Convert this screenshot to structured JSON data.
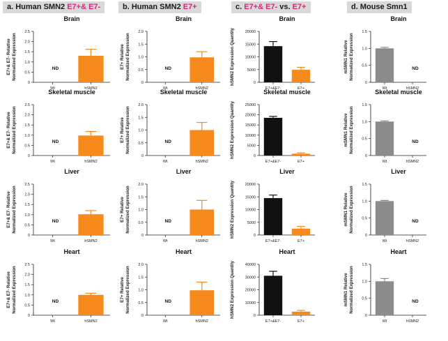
{
  "headers": [
    {
      "prefix": "a. Human SMN2 ",
      "highlight": "E7+& E7-"
    },
    {
      "prefix": "b. Human SMN2 ",
      "highlight": "E7+"
    },
    {
      "prefix": "c. ",
      "highlight": "E7+& E7-",
      "suffix": " vs. ",
      "highlight2": "E7+"
    },
    {
      "prefix": "d. Mouse Smn1",
      "highlight": ""
    }
  ],
  "colors": {
    "orange": "#f78a1d",
    "black": "#111111",
    "gray": "#8c8c8c",
    "axis": "#222222"
  },
  "chart_data": [
    {
      "id": "a-brain",
      "type": "bar",
      "title": "Brain",
      "ylabel": [
        "E7+& E7- Relative",
        "Normalized Expression"
      ],
      "ylim": [
        0,
        2.5
      ],
      "yticks": [
        "0",
        "0.5",
        "1.0",
        "1.5",
        "2.0",
        "2.5"
      ],
      "categories": [
        "Wt",
        "hSMN2"
      ],
      "values": [
        null,
        1.3
      ],
      "errors": [
        null,
        0.32
      ],
      "color": "orange",
      "nd": [
        0
      ]
    },
    {
      "id": "b-brain",
      "type": "bar",
      "title": "Brain",
      "ylabel": [
        "E7+ Relative",
        "Normalized Expression"
      ],
      "ylim": [
        0,
        2.0
      ],
      "yticks": [
        "0",
        "0.5",
        "1.0",
        "1.5",
        "2.0"
      ],
      "categories": [
        "Wt",
        "hSMN2"
      ],
      "values": [
        null,
        0.98
      ],
      "errors": [
        null,
        0.22
      ],
      "color": "orange",
      "nd": [
        0
      ]
    },
    {
      "id": "c-brain",
      "type": "bar",
      "title": "Brain",
      "ylabel": [
        "hSMN2 Expression Quantity"
      ],
      "ylim": [
        0,
        20000
      ],
      "yticks": [
        "0",
        "5000",
        "10000",
        "15000",
        "20000"
      ],
      "categories": [
        "E7+&E7-",
        "E7+"
      ],
      "values": [
        14200,
        4900
      ],
      "errors": [
        1800,
        1000
      ],
      "colors": [
        "black",
        "orange"
      ],
      "nd": []
    },
    {
      "id": "d-brain",
      "type": "bar",
      "title": "Brain",
      "ylabel": [
        "mSMN1 Relative",
        "Normalized Expression"
      ],
      "ylim": [
        0,
        1.5
      ],
      "yticks": [
        "0",
        "0.5",
        "1.0",
        "1.5"
      ],
      "categories": [
        "Wt",
        "hSMN2"
      ],
      "values": [
        1.0,
        null
      ],
      "errors": [
        0.03,
        null
      ],
      "color": "gray",
      "nd": [
        1
      ]
    },
    {
      "id": "a-muscle",
      "type": "bar",
      "title": "Skeletal muscle",
      "ylabel": [
        "E7+& E7- Relative",
        "Normalized Expression"
      ],
      "ylim": [
        0,
        2.5
      ],
      "yticks": [
        "0",
        "0.5",
        "1.0",
        "1.5",
        "2.0",
        "2.5"
      ],
      "categories": [
        "Wt",
        "hSMN2"
      ],
      "values": [
        null,
        0.98
      ],
      "errors": [
        null,
        0.2
      ],
      "color": "orange",
      "nd": [
        0
      ]
    },
    {
      "id": "b-muscle",
      "type": "bar",
      "title": "Skeletal muscle",
      "ylabel": [
        "E7+ Relative",
        "Normalized Expression"
      ],
      "ylim": [
        0,
        2.0
      ],
      "yticks": [
        "0",
        "0.5",
        "1.0",
        "1.5",
        "2.0"
      ],
      "categories": [
        "Wt",
        "hSMN2"
      ],
      "values": [
        null,
        1.0
      ],
      "errors": [
        null,
        0.3
      ],
      "color": "orange",
      "nd": [
        0
      ]
    },
    {
      "id": "c-muscle",
      "type": "bar",
      "title": "Skeletal muscle",
      "ylabel": [
        "hSMN2 Expression Quantity"
      ],
      "ylim": [
        0,
        25000
      ],
      "yticks": [
        "0",
        "5000",
        "10000",
        "15000",
        "20000",
        "25000"
      ],
      "categories": [
        "E7+&E7-",
        "E7+"
      ],
      "values": [
        18500,
        900
      ],
      "errors": [
        700,
        400
      ],
      "colors": [
        "black",
        "orange"
      ],
      "nd": []
    },
    {
      "id": "d-muscle",
      "type": "bar",
      "title": "Skeletal muscle",
      "ylabel": [
        "mSMN1 Relative",
        "Normalized Expression"
      ],
      "ylim": [
        0,
        1.5
      ],
      "yticks": [
        "0",
        "0.5",
        "1.0",
        "1.5"
      ],
      "categories": [
        "Wt",
        "hSMN2"
      ],
      "values": [
        1.0,
        null
      ],
      "errors": [
        0.02,
        null
      ],
      "color": "gray",
      "nd": [
        1
      ]
    },
    {
      "id": "a-liver",
      "type": "bar",
      "title": "Liver",
      "ylabel": [
        "E7+& E7- Relative",
        "Normalized Expression"
      ],
      "ylim": [
        0,
        2.5
      ],
      "yticks": [
        "0",
        "0.5",
        "1.0",
        "1.5",
        "2.0",
        "2.5"
      ],
      "categories": [
        "Wt",
        "hSMN2"
      ],
      "values": [
        null,
        1.02
      ],
      "errors": [
        null,
        0.18
      ],
      "color": "orange",
      "nd": [
        0
      ]
    },
    {
      "id": "b-liver",
      "type": "bar",
      "title": "Liver",
      "ylabel": [
        "E7+ Relative",
        "Normalized Expression"
      ],
      "ylim": [
        0,
        2.0
      ],
      "yticks": [
        "0",
        "0.5",
        "1.0",
        "1.5",
        "2.0"
      ],
      "categories": [
        "Wt",
        "hSMN2"
      ],
      "values": [
        null,
        1.0
      ],
      "errors": [
        null,
        0.36
      ],
      "color": "orange",
      "nd": [
        0
      ]
    },
    {
      "id": "c-liver",
      "type": "bar",
      "title": "Liver",
      "ylabel": [
        "hSMN2 Expression Quantity"
      ],
      "ylim": [
        0,
        20000
      ],
      "yticks": [
        "0",
        "5000",
        "10000",
        "15000",
        "20000"
      ],
      "categories": [
        "E7+&E7-",
        "E7+"
      ],
      "values": [
        14500,
        2500
      ],
      "errors": [
        1200,
        900
      ],
      "colors": [
        "black",
        "orange"
      ],
      "nd": []
    },
    {
      "id": "d-liver",
      "type": "bar",
      "title": "Liver",
      "ylabel": [
        "mSMN1 Relative",
        "Normalized Expression"
      ],
      "ylim": [
        0,
        1.5
      ],
      "yticks": [
        "0",
        "0.5",
        "1.0",
        "1.5"
      ],
      "categories": [
        "Wt",
        "hSMN2"
      ],
      "values": [
        1.0,
        null
      ],
      "errors": [
        0.02,
        null
      ],
      "color": "gray",
      "nd": [
        1
      ]
    },
    {
      "id": "a-heart",
      "type": "bar",
      "title": "Heart",
      "ylabel": [
        "E7+& E7- Relative",
        "Normalized Expression"
      ],
      "ylim": [
        0,
        2.5
      ],
      "yticks": [
        "0",
        "0.5",
        "1.0",
        "1.5",
        "2.0",
        "2.5"
      ],
      "categories": [
        "Wt",
        "hSMN2"
      ],
      "values": [
        null,
        1.0
      ],
      "errors": [
        null,
        0.08
      ],
      "color": "orange",
      "nd": [
        0
      ]
    },
    {
      "id": "b-heart",
      "type": "bar",
      "title": "Heart",
      "ylabel": [
        "E7+ Relative",
        "Normalized Expression"
      ],
      "ylim": [
        0,
        2.0
      ],
      "yticks": [
        "0",
        "0.5",
        "1.0",
        "1.5",
        "2.0"
      ],
      "categories": [
        "Wt",
        "hSMN2"
      ],
      "values": [
        null,
        0.98
      ],
      "errors": [
        null,
        0.32
      ],
      "color": "orange",
      "nd": [
        0
      ]
    },
    {
      "id": "c-heart",
      "type": "bar",
      "title": "Heart",
      "ylabel": [
        "hSMN2 Expression Quantity"
      ],
      "ylim": [
        0,
        40000
      ],
      "yticks": [
        "0",
        "10000",
        "20000",
        "30000",
        "40000"
      ],
      "categories": [
        "E7+&E7-",
        "E7+"
      ],
      "values": [
        31000,
        2800
      ],
      "errors": [
        3500,
        1000
      ],
      "colors": [
        "black",
        "orange"
      ],
      "nd": []
    },
    {
      "id": "d-heart",
      "type": "bar",
      "title": "Heart",
      "ylabel": [
        "mSMN1 Relative",
        "Normalized Expression"
      ],
      "ylim": [
        0,
        1.5
      ],
      "yticks": [
        "0",
        "0.5",
        "1.0",
        "1.5"
      ],
      "categories": [
        "Wt",
        "hSMN2"
      ],
      "values": [
        1.0,
        null
      ],
      "errors": [
        0.08,
        null
      ],
      "color": "gray",
      "nd": [
        1
      ]
    }
  ],
  "nd_label": "ND"
}
